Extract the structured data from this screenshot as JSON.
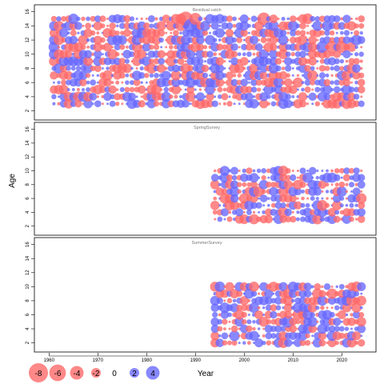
{
  "chart_data": {
    "type": "scatter",
    "variant": "bubble-residuals",
    "xlabel": "Year",
    "ylabel": "Age",
    "xlim": [
      1957,
      2027
    ],
    "ylim": [
      1.5,
      16.3
    ],
    "xticks": [
      1960,
      1970,
      1980,
      1990,
      2000,
      2010,
      2020
    ],
    "yticks": [
      2,
      4,
      6,
      8,
      10,
      12,
      14,
      16
    ],
    "colors": {
      "positive": "#6666ff",
      "negative": "#ff6666"
    },
    "panels": [
      {
        "title": "Residual catch",
        "years": [
          1961,
          2024
        ],
        "ages": [
          3,
          15
        ],
        "highlights": [
          {
            "year": 1988,
            "age": 15,
            "value": -4.5
          },
          {
            "year": 1989,
            "age": 14,
            "value": 4.0
          },
          {
            "year": 1990,
            "age": 15,
            "value": -3.0
          },
          {
            "year": 2004,
            "age": 15,
            "value": -3.5
          },
          {
            "year": 2013,
            "age": 15,
            "value": -2.5
          },
          {
            "year": 2016,
            "age": 11,
            "value": 3.0
          },
          {
            "year": 2018,
            "age": 11,
            "value": -3.0
          },
          {
            "year": 2020,
            "age": 11,
            "value": -3.0
          },
          {
            "year": 1961,
            "age": 11,
            "value": 2.5
          },
          {
            "year": 2023,
            "age": 12,
            "value": 2.5
          }
        ]
      },
      {
        "title": "SpringSurvey",
        "years": [
          1994,
          2024
        ],
        "ages": [
          3,
          10
        ],
        "highlights": [
          {
            "year": 2003,
            "age": 7,
            "value": -2.5
          },
          {
            "year": 2008,
            "age": 4,
            "value": -2.5
          },
          {
            "year": 2016,
            "age": 5,
            "value": -2.5
          }
        ]
      },
      {
        "title": "SummerSurvey",
        "years": [
          1994,
          2024
        ],
        "ages": [
          2,
          10
        ],
        "highlights": [
          {
            "year": 2009,
            "age": 5,
            "value": 3.0
          },
          {
            "year": 2011,
            "age": 6,
            "value": -2.5
          },
          {
            "year": 2024,
            "age": 5,
            "value": -2.0
          }
        ]
      }
    ],
    "legend": {
      "values": [
        -8,
        -6,
        -4,
        -2,
        0,
        2,
        4
      ],
      "labels": [
        "-8",
        "-6",
        "-4",
        "-2",
        "0",
        "2",
        "4"
      ]
    }
  }
}
